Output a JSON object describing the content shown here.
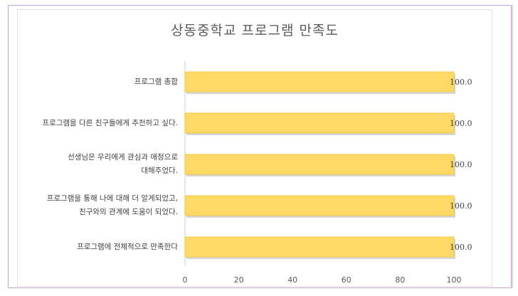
{
  "chart_data": {
    "type": "bar",
    "orientation": "horizontal",
    "title": "상동중학교 프로그램 만족도",
    "categories": [
      "프로그램 총합",
      "프로그램을 다른 친구들에게 추천하고 싶다.",
      "선생님은 우리에게 관심과 애정으로 대해주었다.",
      "프로그램을 통해 나에 대해 더 알게되었고, 친구와의 관계에 도움이 되었다.",
      "프로그램에 전체적으로 만족한다"
    ],
    "category_lines": [
      [
        "프로그램 총합"
      ],
      [
        "프로그램을 다른 친구들에게 추천하고 싶다."
      ],
      [
        "선생님은 우리에게 관심과 애정으로",
        "대해주었다."
      ],
      [
        "프로그램을 통해 나에 대해 더 알게되었고,",
        "친구와의 관계에 도움이 되었다."
      ],
      [
        "프로그램에 전체적으로 만족한다"
      ]
    ],
    "values": [
      100.0,
      100.0,
      100.0,
      100.0,
      100.0
    ],
    "value_labels": [
      "100.0",
      "100.0",
      "100.0",
      "100.0",
      "100.0"
    ],
    "xlim": [
      0,
      100
    ],
    "xticks": [
      0,
      20,
      40,
      60,
      80,
      100
    ],
    "grid": false,
    "legend": "none",
    "bar_color": "#ffd966",
    "bar_edge_color": "#f1c232"
  }
}
